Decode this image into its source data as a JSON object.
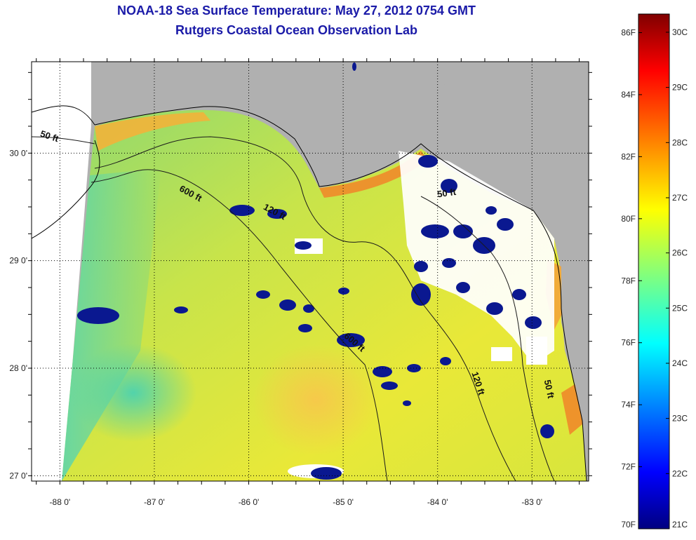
{
  "header": {
    "title": "NOAA-18 Sea Surface Temperature:  May 27, 2012 0754 GMT",
    "subtitle": "Rutgers Coastal Ocean Observation Lab"
  },
  "map": {
    "lon_ticks": [
      "-88 0'",
      "-87 0'",
      "-86 0'",
      "-85 0'",
      "-84 0'",
      "-83 0'"
    ],
    "lat_ticks": [
      "30 0'",
      "29 0'",
      "28 0'",
      "27 0'"
    ],
    "lon_range": [
      -88.3,
      -82.4
    ],
    "lat_range": [
      26.95,
      30.85
    ],
    "land_color": "#b0b0b0",
    "cloud_color": "#ffffff",
    "contour_labels": [
      {
        "text": "50 ft",
        "lon": -88.12,
        "lat": 30.13,
        "angle": 18
      },
      {
        "text": "600 ft",
        "lon": -86.63,
        "lat": 29.6,
        "angle": 28
      },
      {
        "text": "120 ft",
        "lon": -85.74,
        "lat": 29.43,
        "angle": 28
      },
      {
        "text": "50 ft",
        "lon": -83.9,
        "lat": 29.6,
        "angle": -8
      },
      {
        "text": "600 ft",
        "lon": -84.9,
        "lat": 28.22,
        "angle": 40
      },
      {
        "text": "120 ft",
        "lon": -83.6,
        "lat": 27.85,
        "angle": 72
      },
      {
        "text": "50 ft",
        "lon": -82.85,
        "lat": 27.8,
        "angle": 78
      }
    ]
  },
  "colorbar": {
    "f_labels": [
      "86F",
      "84F",
      "82F",
      "80F",
      "78F",
      "76F",
      "74F",
      "72F",
      "70F"
    ],
    "c_labels": [
      "30C",
      "29C",
      "28C",
      "27C",
      "26C",
      "25C",
      "24C",
      "23C",
      "22C",
      "21C"
    ],
    "f_range": [
      70,
      86.6
    ],
    "c_range": [
      21,
      30.33
    ],
    "colormap": "jet"
  }
}
